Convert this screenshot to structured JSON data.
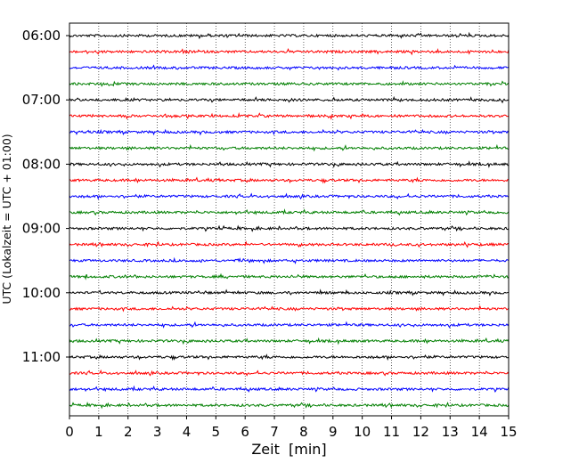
{
  "chart_data": {
    "type": "line",
    "subtype": "helicorder",
    "xlabel": "Zeit  [min]",
    "ylabel": "UTC (Lokalzeit = UTC + 01:00)",
    "xlim": [
      0,
      15
    ],
    "x_ticks": [
      "0",
      "1",
      "2",
      "3",
      "4",
      "5",
      "6",
      "7",
      "8",
      "9",
      "10",
      "11",
      "12",
      "13",
      "14",
      "15"
    ],
    "y_tick_labels": [
      "06:00",
      "07:00",
      "08:00",
      "09:00",
      "10:00",
      "11:00"
    ],
    "grid": "vertical dotted at each minute",
    "trace_interval_minutes": 15,
    "trace_start_times": [
      "06:00",
      "06:15",
      "06:30",
      "06:45",
      "07:00",
      "07:15",
      "07:30",
      "07:45",
      "08:00",
      "08:15",
      "08:30",
      "08:45",
      "09:00",
      "09:15",
      "09:30",
      "09:45",
      "10:00",
      "10:15",
      "10:30",
      "10:45",
      "11:00",
      "11:15",
      "11:30",
      "11:45"
    ],
    "trace_color_cycle": [
      "#000000",
      "#ff0000",
      "#0000ff",
      "#007f00"
    ]
  }
}
